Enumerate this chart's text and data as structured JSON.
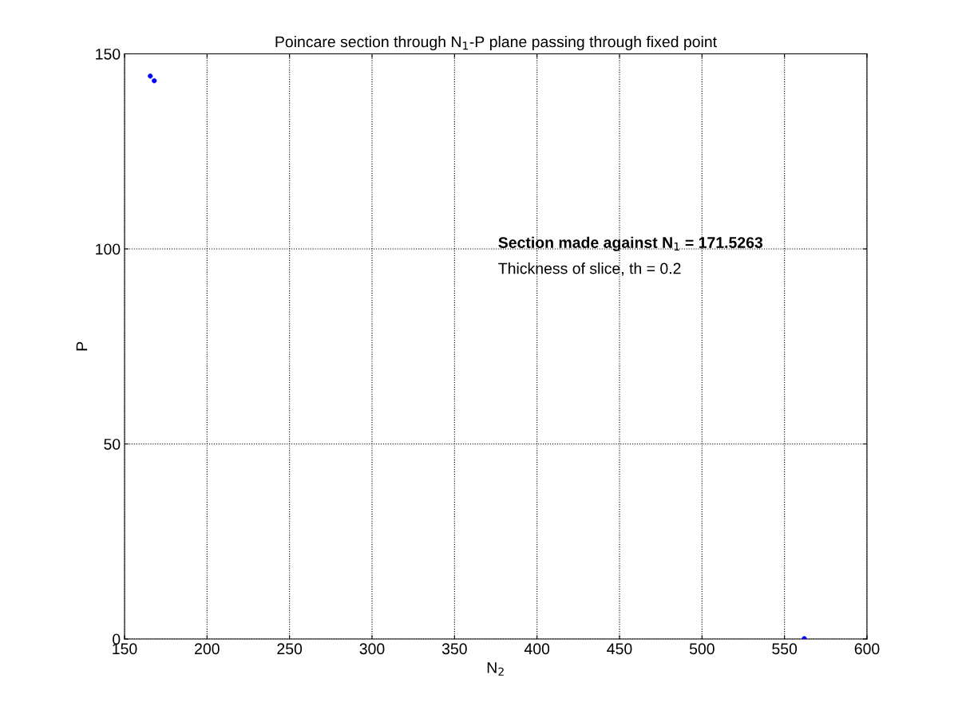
{
  "chart_data": {
    "type": "scatter",
    "title": "Poincare section through N$_{1}$-P plane passing through fixed point",
    "xlabel": "N$_{2}$",
    "ylabel": "P",
    "series": [
      {
        "color": "#0000ff",
        "x": [
          165.6,
          168.0,
          562.0
        ],
        "values": [
          144.3,
          143.1,
          0.1
        ]
      }
    ],
    "xlim": [
      150,
      600
    ],
    "xticks": [
      150,
      200,
      250,
      300,
      350,
      400,
      450,
      500,
      550,
      600
    ],
    "ylim": [
      0,
      150
    ],
    "yticks": [
      0,
      50,
      100,
      150
    ],
    "grid": true,
    "marker": "circle",
    "annotations": [
      "Section made against N$_{1}$ = 171.5263",
      "Thickness of slice, th = 0.2"
    ]
  }
}
